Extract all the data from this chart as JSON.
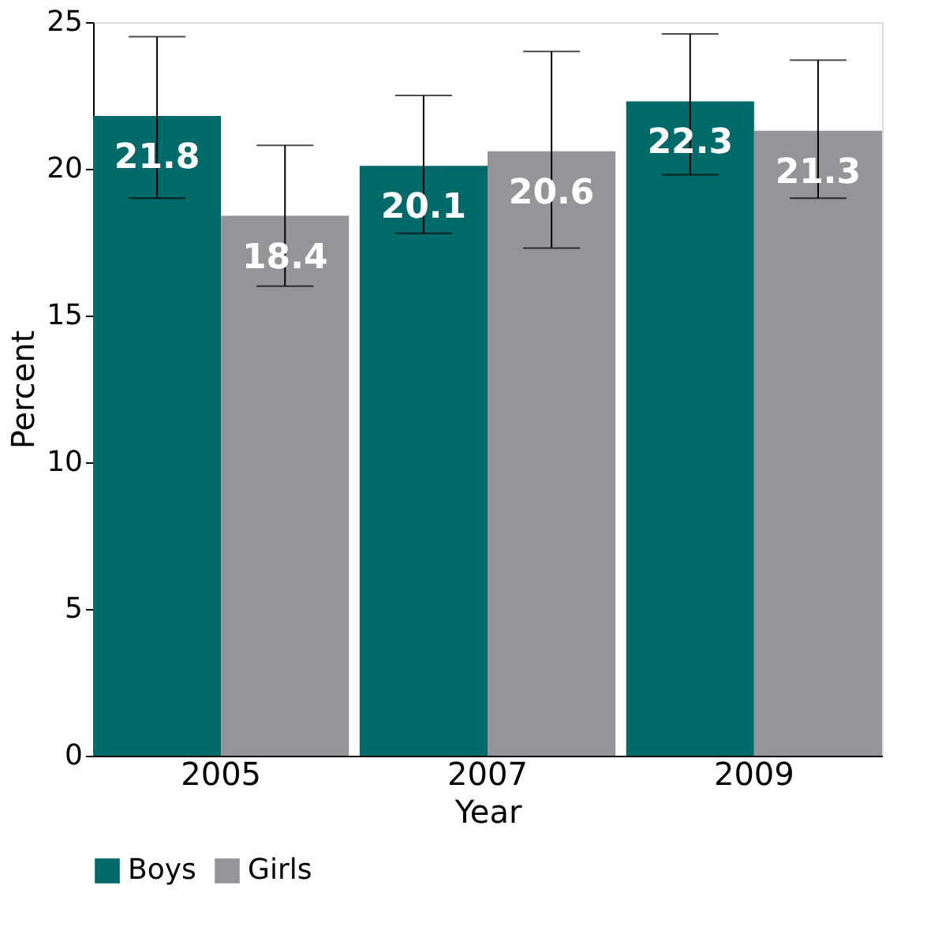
{
  "chart_data": {
    "type": "bar",
    "xlabel": "Year",
    "ylabel": "Percent",
    "categories": [
      "2005",
      "2007",
      "2009"
    ],
    "series": [
      {
        "name": "Boys",
        "color": "#006a6a",
        "values": [
          21.8,
          20.1,
          22.3
        ],
        "errors": [
          [
            19.0,
            24.5
          ],
          [
            17.8,
            22.5
          ],
          [
            19.8,
            24.6
          ]
        ]
      },
      {
        "name": "Girls",
        "color": "#939598",
        "values": [
          18.4,
          20.6,
          21.3
        ],
        "errors": [
          [
            16.0,
            20.8
          ],
          [
            17.3,
            24.0
          ],
          [
            19.0,
            23.7
          ]
        ]
      }
    ],
    "ylim": [
      0,
      25
    ],
    "yticks": [
      0,
      5,
      10,
      15,
      20,
      25
    ],
    "data_labels": true,
    "grid": false,
    "legend": "bottom"
  }
}
